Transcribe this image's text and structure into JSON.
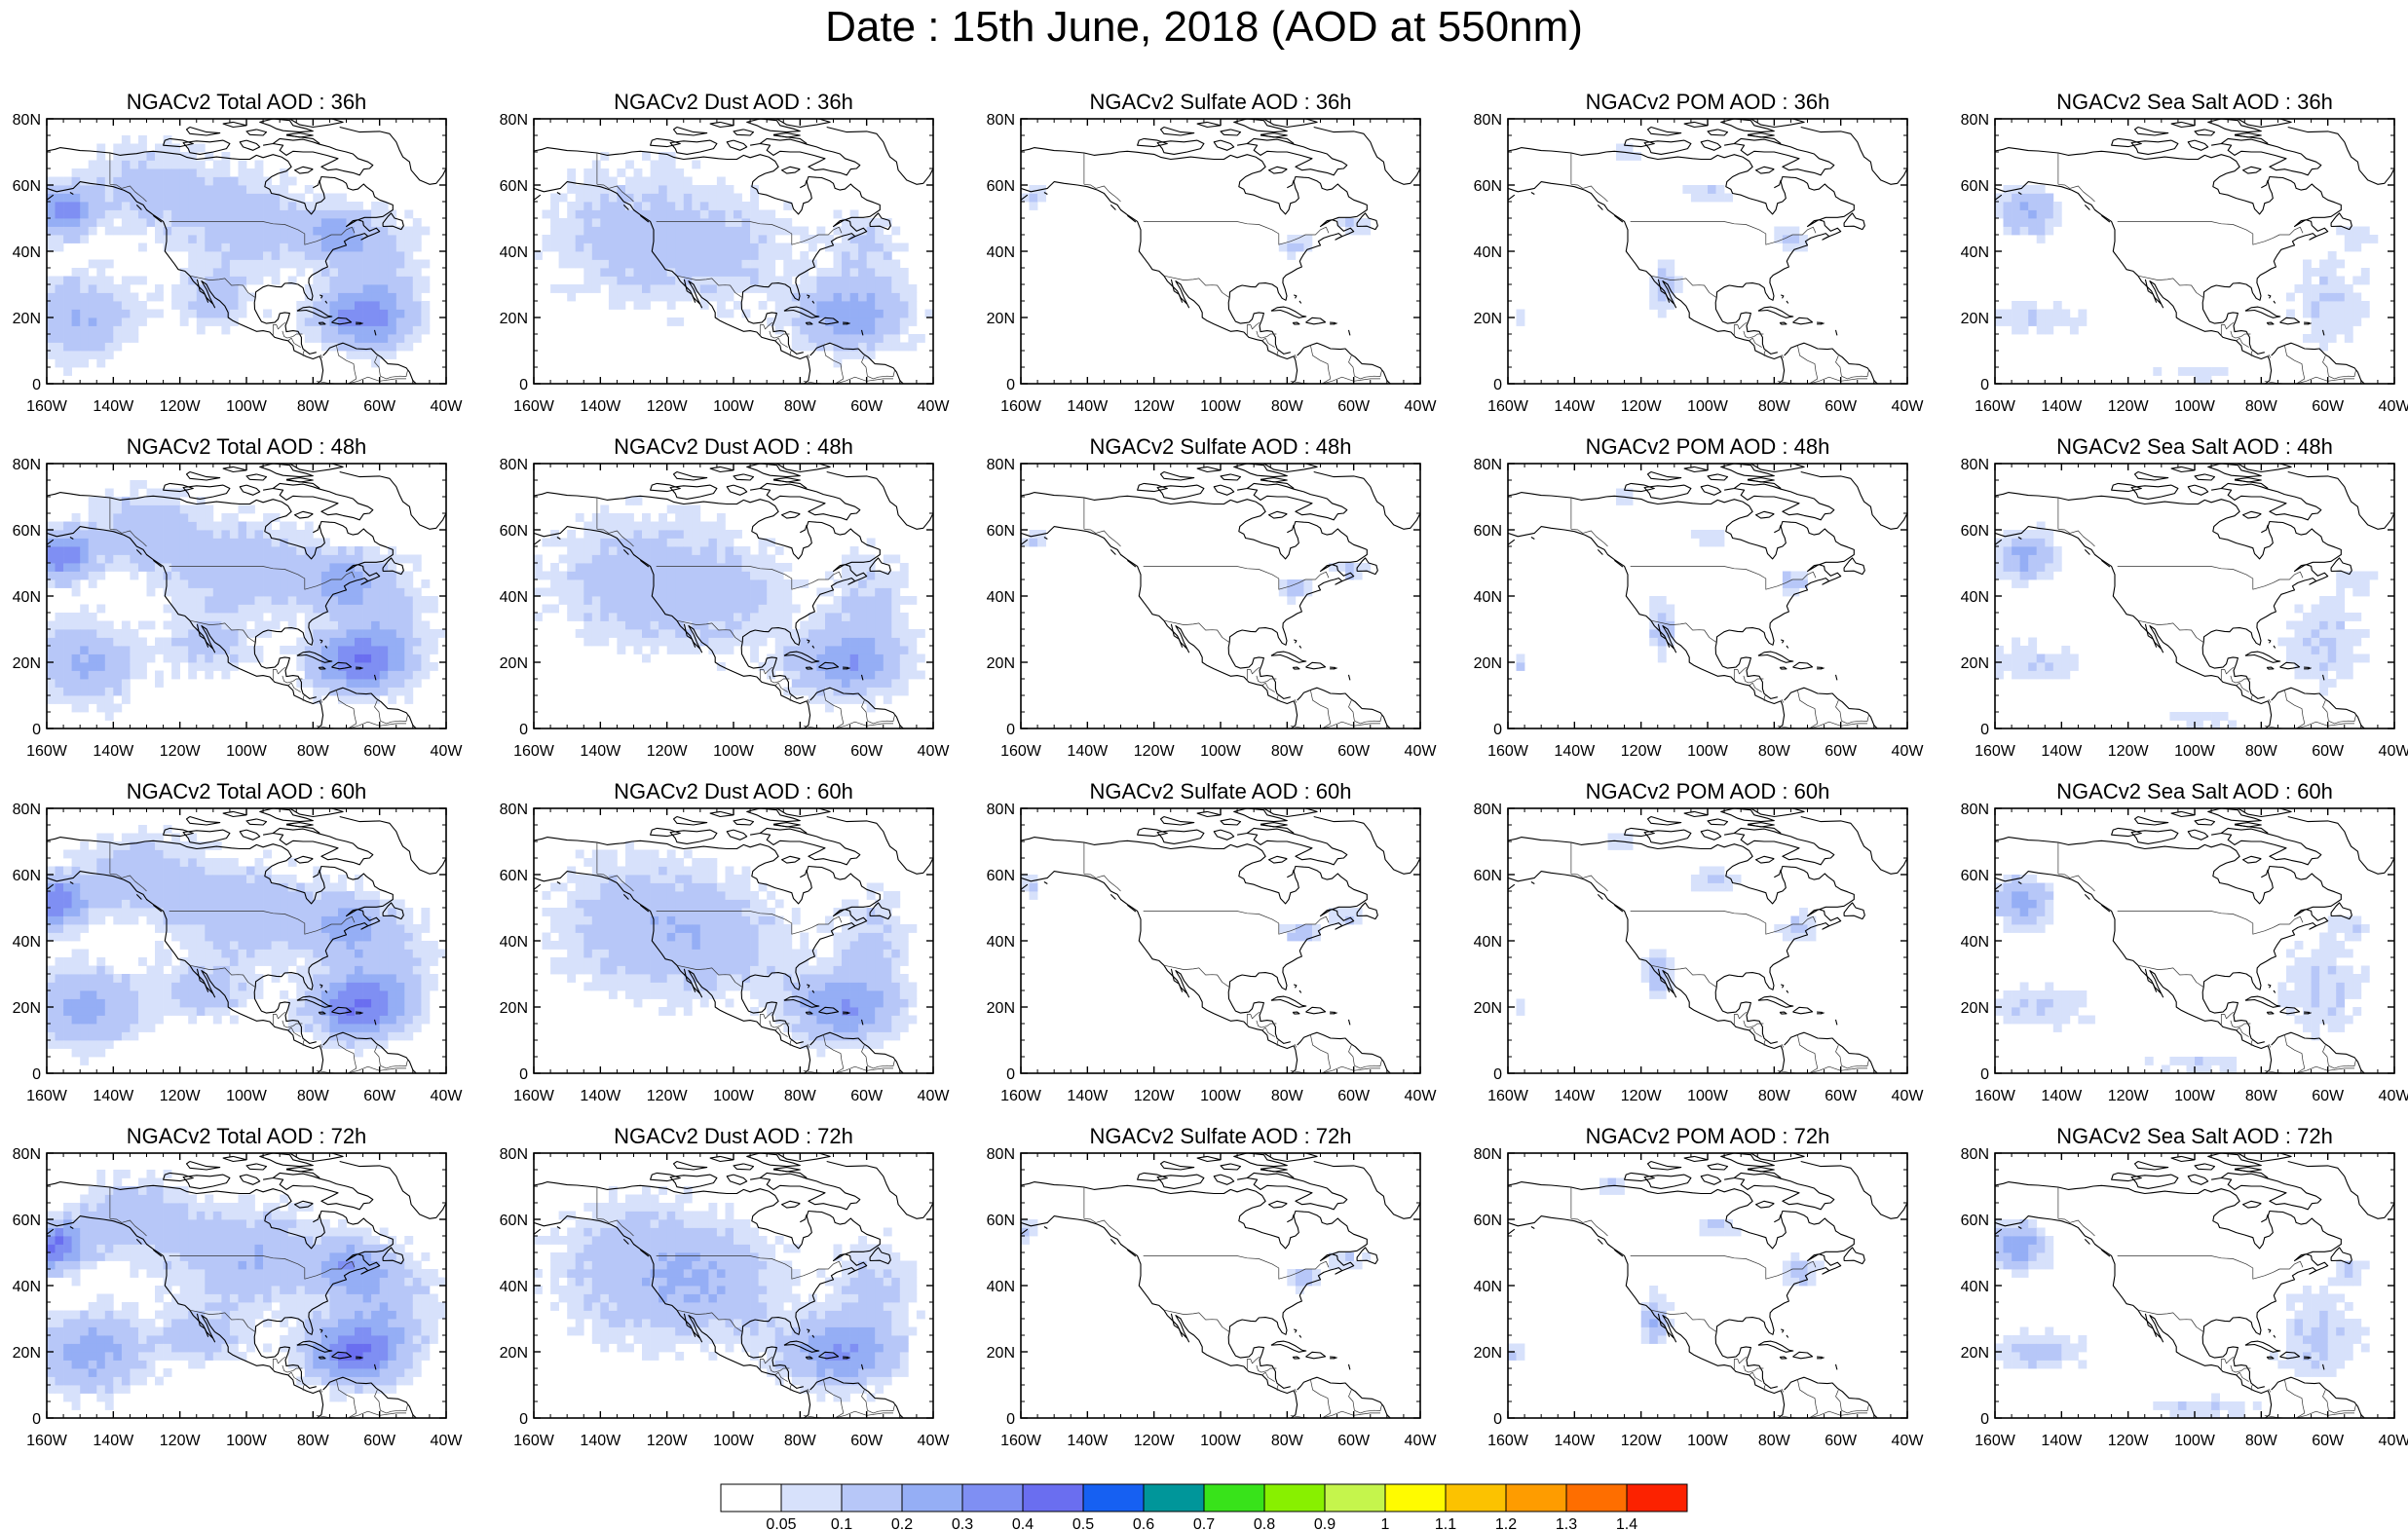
{
  "title": "Date : 15th June, 2018 (AOD at 550nm)",
  "map": {
    "lon_labels": [
      "160W",
      "140W",
      "120W",
      "100W",
      "80W",
      "60W",
      "40W"
    ],
    "lat_labels": [
      "0",
      "20N",
      "40N",
      "60N",
      "80N"
    ],
    "lon_range": [
      -160,
      -40
    ],
    "lat_range": [
      0,
      80
    ]
  },
  "panels": [
    {
      "title": "NGACv2 Total AOD : 36h",
      "species": "total",
      "hour": 36
    },
    {
      "title": "NGACv2 Dust AOD : 36h",
      "species": "dust",
      "hour": 36
    },
    {
      "title": "NGACv2 Sulfate AOD : 36h",
      "species": "sulfate",
      "hour": 36
    },
    {
      "title": "NGACv2 POM AOD : 36h",
      "species": "pom",
      "hour": 36
    },
    {
      "title": "NGACv2 Sea Salt AOD : 36h",
      "species": "seasalt",
      "hour": 36
    },
    {
      "title": "NGACv2 Total AOD : 48h",
      "species": "total",
      "hour": 48
    },
    {
      "title": "NGACv2 Dust AOD : 48h",
      "species": "dust",
      "hour": 48
    },
    {
      "title": "NGACv2 Sulfate AOD : 48h",
      "species": "sulfate",
      "hour": 48
    },
    {
      "title": "NGACv2 POM AOD : 48h",
      "species": "pom",
      "hour": 48
    },
    {
      "title": "NGACv2 Sea Salt AOD : 48h",
      "species": "seasalt",
      "hour": 48
    },
    {
      "title": "NGACv2 Total AOD : 60h",
      "species": "total",
      "hour": 60
    },
    {
      "title": "NGACv2 Dust AOD : 60h",
      "species": "dust",
      "hour": 60
    },
    {
      "title": "NGACv2 Sulfate AOD : 60h",
      "species": "sulfate",
      "hour": 60
    },
    {
      "title": "NGACv2 POM AOD : 60h",
      "species": "pom",
      "hour": 60
    },
    {
      "title": "NGACv2 Sea Salt AOD : 60h",
      "species": "seasalt",
      "hour": 60
    },
    {
      "title": "NGACv2 Total AOD : 72h",
      "species": "total",
      "hour": 72
    },
    {
      "title": "NGACv2 Dust AOD : 72h",
      "species": "dust",
      "hour": 72
    },
    {
      "title": "NGACv2 Sulfate AOD : 72h",
      "species": "sulfate",
      "hour": 72
    },
    {
      "title": "NGACv2 POM AOD : 72h",
      "species": "pom",
      "hour": 72
    },
    {
      "title": "NGACv2 Sea Salt  AOD : 72h",
      "species": "seasalt",
      "hour": 72
    }
  ],
  "colorbar": {
    "colors": [
      "#ffffff",
      "#d7e1fb",
      "#b7c7f8",
      "#95aef5",
      "#7f8ff3",
      "#6a6ef0",
      "#1660f2",
      "#00969a",
      "#38e31a",
      "#88f000",
      "#c5f54c",
      "#fffb00",
      "#fcc200",
      "#fe9c00",
      "#fe6e00",
      "#fc2200"
    ],
    "labels": [
      "0.05",
      "0.1",
      "0.2",
      "0.3",
      "0.4",
      "0.5",
      "0.6",
      "0.7",
      "0.8",
      "0.9",
      "1",
      "1.1",
      "1.2",
      "1.3",
      "1.4"
    ]
  },
  "coast_color": "#000000"
}
